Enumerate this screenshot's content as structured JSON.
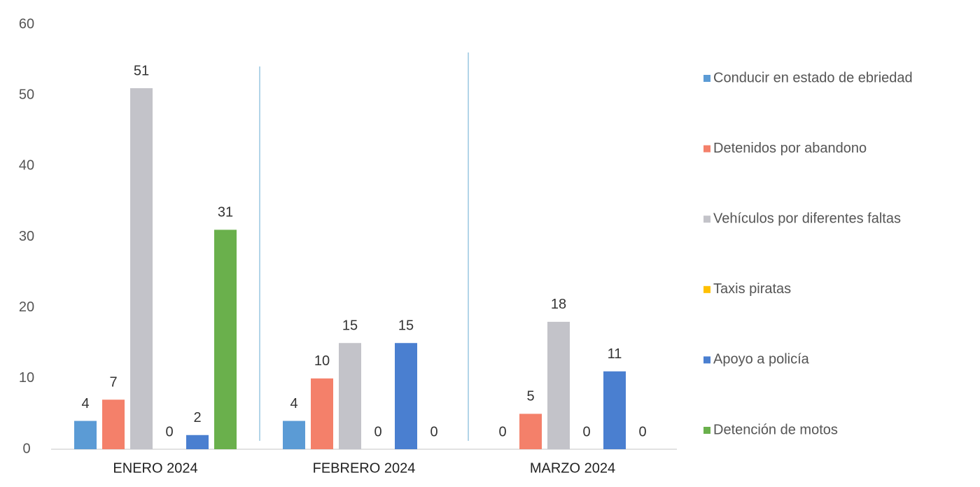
{
  "chart_data": {
    "type": "bar",
    "categories": [
      "ENERO 2024",
      "FEBRERO 2024",
      "MARZO 2024"
    ],
    "series": [
      {
        "name": "Conducir en estado de ebriedad",
        "color": "#5b9bd5",
        "values": [
          4,
          4,
          0
        ]
      },
      {
        "name": "Detenidos por abandono",
        "color": "#f4806a",
        "values": [
          7,
          10,
          5
        ]
      },
      {
        "name": "Vehículos por diferentes faltas",
        "color": "#c3c3c9",
        "values": [
          51,
          15,
          18
        ]
      },
      {
        "name": "Taxis piratas",
        "color": "#ffc000",
        "values": [
          0,
          0,
          0
        ]
      },
      {
        "name": "Apoyo a policía",
        "color": "#4a7fd0",
        "values": [
          2,
          15,
          11
        ]
      },
      {
        "name": "Detención de motos",
        "color": "#6ab04c",
        "values": [
          31,
          0,
          0
        ]
      }
    ],
    "ylim": [
      0,
      60
    ],
    "yticks": [
      0,
      10,
      20,
      30,
      40,
      50,
      60
    ],
    "grid": false,
    "legend": "right"
  }
}
